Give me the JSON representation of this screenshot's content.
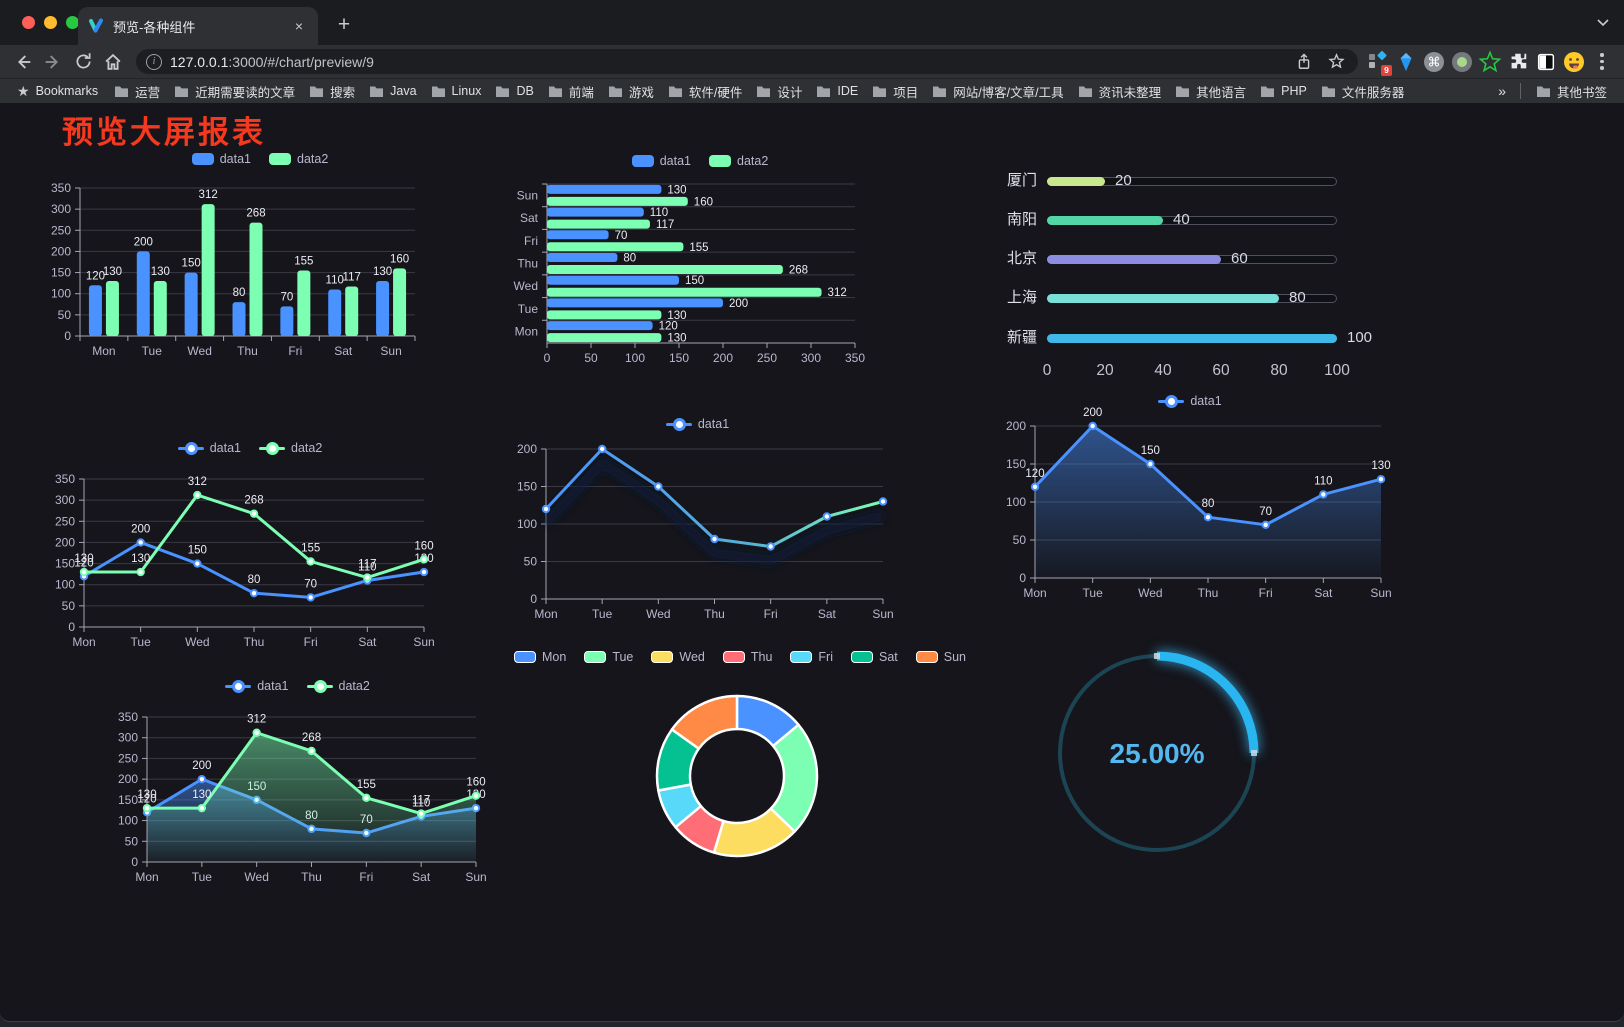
{
  "browser": {
    "tab_title": "预览-各种组件",
    "tab_close": "×",
    "new_tab": "+",
    "url_host": "127.0.0.1",
    "url_rest": ":3000/#/chart/preview/9",
    "bookmarks_label": "Bookmarks",
    "bookmark_folders": [
      "运营",
      "近期需要读的文章",
      "搜索",
      "Java",
      "Linux",
      "DB",
      "前端",
      "游戏",
      "软件/硬件",
      "设计",
      "IDE",
      "项目",
      "网站/博客/文章/工具",
      "资讯未整理",
      "其他语言",
      "PHP",
      "文件服务器"
    ],
    "bookmarks_overflow": "»",
    "other_bookmarks": "其他书签",
    "extension_badge": "9"
  },
  "page": {
    "title": "预览大屏报表"
  },
  "theme": {
    "axis_text": "#b9b8ce",
    "grid": "#3a3a46",
    "axis_line": "#a5a5b5",
    "value": "#ebebf3",
    "background": "#15151b"
  },
  "chart_data": [
    {
      "id": "bar-grouped",
      "type": "bar",
      "categories": [
        "Mon",
        "Tue",
        "Wed",
        "Thu",
        "Fri",
        "Sat",
        "Sun"
      ],
      "series": [
        {
          "name": "data1",
          "color": "#4992ff",
          "values": [
            120,
            200,
            150,
            80,
            70,
            110,
            130
          ]
        },
        {
          "name": "data2",
          "color": "#7cffb2",
          "values": [
            130,
            130,
            312,
            268,
            155,
            117,
            160
          ]
        }
      ],
      "ylim": [
        0,
        350
      ],
      "yticks": [
        0,
        50,
        100,
        150,
        200,
        250,
        300,
        350
      ],
      "legend_position": "top",
      "grid": true
    },
    {
      "id": "bar-horizontal",
      "type": "hbar",
      "categories": [
        "Mon",
        "Tue",
        "Wed",
        "Thu",
        "Fri",
        "Sat",
        "Sun"
      ],
      "series": [
        {
          "name": "data1",
          "color": "#4992ff",
          "values": [
            120,
            200,
            150,
            80,
            70,
            110,
            130
          ]
        },
        {
          "name": "data2",
          "color": "#7cffb2",
          "values": [
            130,
            130,
            312,
            268,
            155,
            117,
            160
          ]
        }
      ],
      "xlim": [
        0,
        350
      ],
      "xticks": [
        0,
        50,
        100,
        150,
        200,
        250,
        300,
        350
      ],
      "legend_position": "top",
      "grid": true
    },
    {
      "id": "progress-bars",
      "type": "progress",
      "items": [
        {
          "label": "厦门",
          "value": 20,
          "color": "#c8e88f"
        },
        {
          "label": "南阳",
          "value": 40,
          "color": "#52d6a5"
        },
        {
          "label": "北京",
          "value": 60,
          "color": "#8c8ce0"
        },
        {
          "label": "上海",
          "value": 80,
          "color": "#79dfd9"
        },
        {
          "label": "新疆",
          "value": 100,
          "color": "#3fb7e8"
        }
      ],
      "xlim": [
        0,
        100
      ],
      "xticks": [
        0,
        20,
        40,
        60,
        80,
        100
      ]
    },
    {
      "id": "line-basic",
      "type": "line",
      "categories": [
        "Mon",
        "Tue",
        "Wed",
        "Thu",
        "Fri",
        "Sat",
        "Sun"
      ],
      "series": [
        {
          "name": "data1",
          "color": "#4992ff",
          "values": [
            120,
            200,
            150,
            80,
            70,
            110,
            130
          ],
          "labels": true
        },
        {
          "name": "data2",
          "color": "#7cffb2",
          "values": [
            130,
            130,
            312,
            268,
            155,
            117,
            160
          ],
          "labels": true
        }
      ],
      "ylim": [
        0,
        350
      ],
      "yticks": [
        0,
        50,
        100,
        150,
        200,
        250,
        300,
        350
      ],
      "legend_position": "top",
      "grid": true
    },
    {
      "id": "line-gradient",
      "type": "line",
      "shadow": true,
      "categories": [
        "Mon",
        "Tue",
        "Wed",
        "Thu",
        "Fri",
        "Sat",
        "Sun"
      ],
      "series": [
        {
          "name": "data1",
          "color": "#4992ff",
          "color_gradient": [
            "#4992ff",
            "#7cffb2"
          ],
          "values": [
            120,
            200,
            150,
            80,
            70,
            110,
            130
          ],
          "labels": false
        }
      ],
      "ylim": [
        0,
        200
      ],
      "yticks": [
        0,
        50,
        100,
        150,
        200
      ],
      "legend_position": "top",
      "grid": true
    },
    {
      "id": "area-blue",
      "type": "line",
      "categories": [
        "Mon",
        "Tue",
        "Wed",
        "Thu",
        "Fri",
        "Sat",
        "Sun"
      ],
      "series": [
        {
          "name": "data1",
          "color": "#4992ff",
          "values": [
            120,
            200,
            150,
            80,
            70,
            110,
            130
          ],
          "labels": true,
          "area": true
        }
      ],
      "ylim": [
        0,
        200
      ],
      "yticks": [
        0,
        50,
        100,
        150,
        200
      ],
      "legend_position": "top",
      "grid": true
    },
    {
      "id": "line-area-two",
      "type": "line",
      "categories": [
        "Mon",
        "Tue",
        "Wed",
        "Thu",
        "Fri",
        "Sat",
        "Sun"
      ],
      "series": [
        {
          "name": "data1",
          "color": "#4992ff",
          "values": [
            120,
            200,
            150,
            80,
            70,
            110,
            130
          ],
          "labels": true,
          "area": true
        },
        {
          "name": "data2",
          "color": "#7cffb2",
          "values": [
            130,
            130,
            312,
            268,
            155,
            117,
            160
          ],
          "labels": true,
          "area": true
        }
      ],
      "ylim": [
        0,
        350
      ],
      "yticks": [
        0,
        50,
        100,
        150,
        200,
        250,
        300,
        350
      ],
      "legend_position": "top",
      "grid": true
    },
    {
      "id": "donut",
      "type": "pie",
      "inner_radius": 47,
      "outer_radius": 80,
      "legend_position": "top",
      "items": [
        {
          "name": "Mon",
          "value": 120,
          "color": "#4992ff"
        },
        {
          "name": "Tue",
          "value": 200,
          "color": "#7cffb2"
        },
        {
          "name": "Wed",
          "value": 150,
          "color": "#fddd60"
        },
        {
          "name": "Thu",
          "value": 80,
          "color": "#ff6e76"
        },
        {
          "name": "Fri",
          "value": 70,
          "color": "#58d9f9"
        },
        {
          "name": "Sat",
          "value": 110,
          "color": "#05c091"
        },
        {
          "name": "Sun",
          "value": 130,
          "color": "#ff8a45"
        }
      ]
    },
    {
      "id": "gauge",
      "type": "gauge",
      "value": 25,
      "max": 100,
      "label": "25.00%",
      "color": "#29b6f0",
      "track_color": "#1c4554",
      "text_color": "#54b8f0"
    }
  ]
}
